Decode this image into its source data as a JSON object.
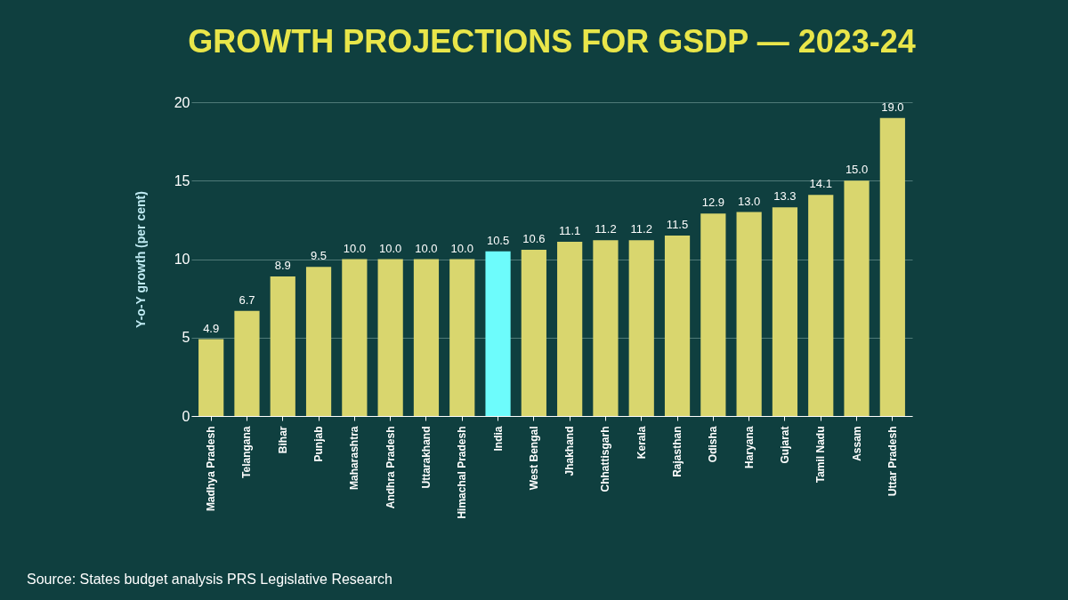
{
  "chart_data": {
    "type": "bar",
    "title": "GROWTH PROJECTIONS FOR GSDP — 2023-24",
    "ylabel": "Y-o-Y growth (per cent)",
    "categories": [
      "Madhya Pradesh",
      "Telangana",
      "Bihar",
      "Punjab",
      "Maharashtra",
      "Andhra Pradesh",
      "Uttarakhand",
      "Himachal Pradesh",
      "India",
      "West Bengal",
      "Jhakhand",
      "Chhattisgarh",
      "Kerala",
      "Rajasthan",
      "Odisha",
      "Haryana",
      "Gujarat",
      "Tamil Nadu",
      "Assam",
      "Uttar Pradesh"
    ],
    "values": [
      4.9,
      6.7,
      8.9,
      9.5,
      10.0,
      10.0,
      10.0,
      10.0,
      10.5,
      10.6,
      11.1,
      11.2,
      11.2,
      11.5,
      12.9,
      13.0,
      13.3,
      14.1,
      15.0,
      19.0
    ],
    "colors": [
      "#d9d66e",
      "#d9d66e",
      "#d9d66e",
      "#d9d66e",
      "#d9d66e",
      "#d9d66e",
      "#d9d66e",
      "#d9d66e",
      "#6dfcfc",
      "#d9d66e",
      "#d9d66e",
      "#d9d66e",
      "#d9d66e",
      "#d9d66e",
      "#d9d66e",
      "#d9d66e",
      "#d9d66e",
      "#d9d66e",
      "#d9d66e",
      "#d9d66e"
    ],
    "value_labels": [
      "4.9",
      "6.7",
      "8.9",
      "9.5",
      "10.0",
      "10.0",
      "10.0",
      "10.0",
      "10.5",
      "10.6",
      "11.1",
      "11.2",
      "11.2",
      "11.5",
      "12.9",
      "13.0",
      "13.3",
      "14.1",
      "15.0",
      "19.0"
    ],
    "ylim": [
      0,
      20
    ],
    "yticks": [
      0,
      5,
      10,
      15,
      20
    ],
    "grid": "y",
    "annotations": [
      "Source: States budget analysis PRS Legislative Research"
    ]
  }
}
